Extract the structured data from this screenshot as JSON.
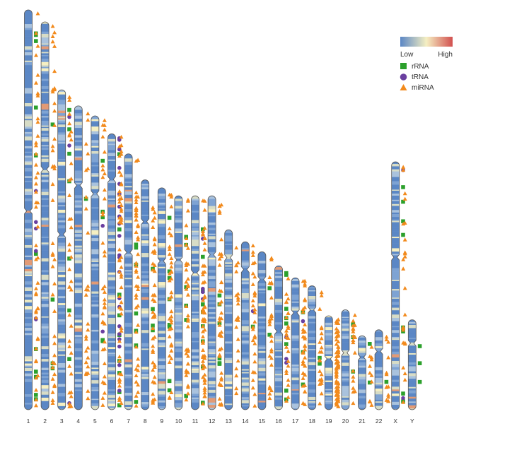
{
  "legend": {
    "scale": {
      "low_label": "Low",
      "high_label": "High"
    },
    "items": [
      {
        "key": "rrna",
        "label": "rRNA",
        "shape": "square",
        "color": "#2ca02c"
      },
      {
        "key": "trna",
        "label": "tRNA",
        "shape": "circle",
        "color": "#6a3fa0"
      },
      {
        "key": "mirna",
        "label": "miRNA",
        "shape": "triangle",
        "color": "#f28a1c"
      }
    ]
  },
  "colors": {
    "density_low": "#5b87c5",
    "density_mid": "#f5efc2",
    "density_high": "#d2504f",
    "outline": "#555555"
  },
  "chromosomes": [
    {
      "label": "1",
      "len": 1.0,
      "cen": 0.503,
      "rrna": 11,
      "trna": 6,
      "mirna": 46
    },
    {
      "label": "2",
      "len": 0.97,
      "cen": 0.38,
      "rrna": 4,
      "trna": 0,
      "mirna": 44
    },
    {
      "label": "3",
      "len": 0.8,
      "cen": 0.452,
      "rrna": 7,
      "trna": 3,
      "mirna": 36
    },
    {
      "label": "4",
      "len": 0.76,
      "cen": 0.262,
      "rrna": 1,
      "trna": 0,
      "mirna": 28
    },
    {
      "label": "5",
      "len": 0.735,
      "cen": 0.265,
      "rrna": 5,
      "trna": 2,
      "mirna": 38
    },
    {
      "label": "6",
      "len": 0.69,
      "cen": 0.165,
      "rrna": 9,
      "trna": 22,
      "mirna": 52
    },
    {
      "label": "7",
      "len": 0.64,
      "cen": 0.385,
      "rrna": 7,
      "trna": 0,
      "mirna": 46
    },
    {
      "label": "8",
      "len": 0.575,
      "cen": 0.182,
      "rrna": 4,
      "trna": 0,
      "mirna": 44
    },
    {
      "label": "9",
      "len": 0.555,
      "cen": 0.33,
      "rrna": 8,
      "trna": 0,
      "mirna": 40
    },
    {
      "label": "10",
      "len": 0.535,
      "cen": 0.3,
      "rrna": 6,
      "trna": 0,
      "mirna": 38
    },
    {
      "label": "11",
      "len": 0.535,
      "cen": 0.36,
      "rrna": 9,
      "trna": 4,
      "mirna": 60
    },
    {
      "label": "12",
      "len": 0.535,
      "cen": 0.275,
      "rrna": 6,
      "trna": 0,
      "mirna": 40
    },
    {
      "label": "13",
      "len": 0.45,
      "cen": 0.155,
      "rrna": 0,
      "trna": 0,
      "mirna": 22
    },
    {
      "label": "14",
      "len": 0.42,
      "cen": 0.165,
      "rrna": 1,
      "trna": 1,
      "mirna": 30
    },
    {
      "label": "15",
      "len": 0.395,
      "cen": 0.175,
      "rrna": 2,
      "trna": 0,
      "mirna": 26
    },
    {
      "label": "16",
      "len": 0.36,
      "cen": 0.455,
      "rrna": 8,
      "trna": 3,
      "mirna": 24
    },
    {
      "label": "17",
      "len": 0.33,
      "cen": 0.265,
      "rrna": 3,
      "trna": 1,
      "mirna": 38
    },
    {
      "label": "18",
      "len": 0.31,
      "cen": 0.195,
      "rrna": 2,
      "trna": 0,
      "mirna": 22
    },
    {
      "label": "19",
      "len": 0.235,
      "cen": 0.46,
      "rrna": 0,
      "trna": 0,
      "mirna": 70
    },
    {
      "label": "20",
      "len": 0.25,
      "cen": 0.43,
      "rrna": 3,
      "trna": 0,
      "mirna": 22
    },
    {
      "label": "21",
      "len": 0.185,
      "cen": 0.29,
      "rrna": 2,
      "trna": 0,
      "mirna": 12
    },
    {
      "label": "22",
      "len": 0.2,
      "cen": 0.27,
      "rrna": 1,
      "trna": 0,
      "mirna": 14
    },
    {
      "label": "X",
      "len": 0.62,
      "cen": 0.385,
      "rrna": 9,
      "trna": 2,
      "mirna": 24
    },
    {
      "label": "Y",
      "len": 0.225,
      "cen": 0.26,
      "rrna": 3,
      "trna": 0,
      "mirna": 0
    }
  ]
}
